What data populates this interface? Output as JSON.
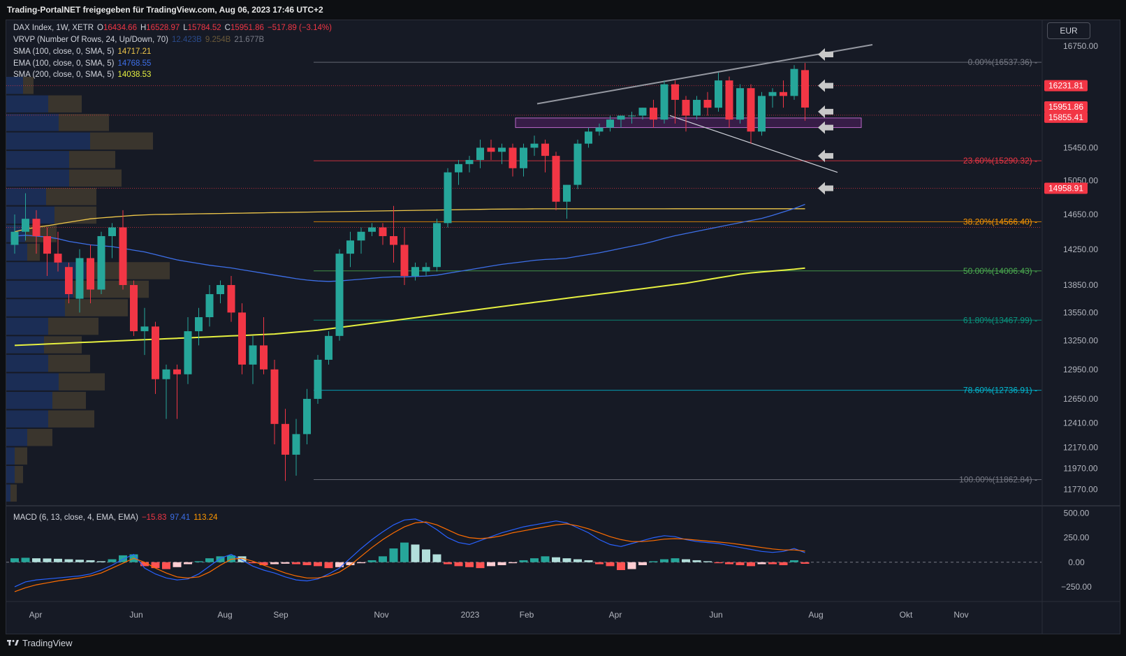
{
  "banner": "Trading-PortalNET freigegeben für TradingView.com, Aug 06, 2023 17:46 UTC+2",
  "footer": "TradingView",
  "currency": "EUR",
  "colors": {
    "up": "#26a69a",
    "down": "#f23645",
    "sma100": "#f0c84a",
    "ema100": "#3d6fe8",
    "sma200": "#e6f040",
    "grid": "#2a2e39",
    "bg": "#161a25"
  },
  "legend": {
    "symbol": "DAX Index, 1W, XETR",
    "o_label": "O",
    "o": "16434.66",
    "h_label": "H",
    "h": "16528.97",
    "l_label": "L",
    "l": "15784.52",
    "c_label": "C",
    "c": "15951.86",
    "change": "−517.89 (−3.14%)",
    "vrvp": "VRVP (Number Of Rows, 24, Up/Down, 70)",
    "vrvp_v1": "12.423B",
    "vrvp_v2": "9.254B",
    "vrvp_v3": "21.677B",
    "sma100": "SMA (100, close, 0, SMA, 5)",
    "sma100_val": "14717.21",
    "ema100": "EMA (100, close, 0, SMA, 5)",
    "ema100_val": "14768.55",
    "sma200": "SMA (200, close, 0, SMA, 5)",
    "sma200_val": "14038.53"
  },
  "macd_legend": {
    "label": "MACD (6, 13, close, 4, EMA, EMA)",
    "hist": "−15.83",
    "macd": "97.41",
    "signal": "113.24"
  },
  "chart_data": [
    {
      "type": "candlestick",
      "title": "DAX Index, 1W, XETR",
      "y_scale": "log",
      "ylim": [
        11650,
        17100
      ],
      "y_ticks": [
        "16750.00",
        "15450.00",
        "15050.00",
        "14650.00",
        "14250.00",
        "13850.00",
        "13550.00",
        "13250.00",
        "12950.00",
        "12650.00",
        "12410.00",
        "12170.00",
        "11970.00",
        "11770.00"
      ],
      "x_ticks": [
        "Apr",
        "Jun",
        "Aug",
        "Sep",
        "Nov",
        "2023",
        "Feb",
        "Apr",
        "Jun",
        "Aug",
        "Okt",
        "Nov"
      ],
      "candles": [
        [
          14300,
          14650,
          14200,
          14450
        ],
        [
          14450,
          14900,
          14350,
          14600
        ],
        [
          14600,
          14700,
          14200,
          14400
        ],
        [
          14400,
          14500,
          13950,
          14200
        ],
        [
          14200,
          14450,
          14000,
          14100
        ],
        [
          14050,
          14100,
          13650,
          13750
        ],
        [
          13700,
          14250,
          13550,
          14150
        ],
        [
          14150,
          14300,
          13650,
          13800
        ],
        [
          13800,
          14450,
          13750,
          14400
        ],
        [
          14400,
          14550,
          14150,
          14500
        ],
        [
          14500,
          14700,
          13800,
          13850
        ],
        [
          13850,
          13900,
          13300,
          13350
        ],
        [
          13350,
          13600,
          13100,
          13400
        ],
        [
          13400,
          13450,
          12700,
          12850
        ],
        [
          12850,
          13000,
          12450,
          12950
        ],
        [
          12950,
          13000,
          12450,
          12900
        ],
        [
          12900,
          13500,
          12800,
          13350
        ],
        [
          13350,
          13600,
          13200,
          13500
        ],
        [
          13500,
          13850,
          13400,
          13750
        ],
        [
          13750,
          13900,
          13650,
          13850
        ],
        [
          13850,
          13950,
          13450,
          13550
        ],
        [
          13550,
          13650,
          12900,
          13000
        ],
        [
          13000,
          13300,
          12800,
          13200
        ],
        [
          13200,
          13500,
          12900,
          12950
        ],
        [
          12950,
          13050,
          12200,
          12400
        ],
        [
          12400,
          12550,
          11850,
          12100
        ],
        [
          12100,
          12450,
          11900,
          12300
        ],
        [
          12300,
          12750,
          12200,
          12650
        ],
        [
          12650,
          13100,
          12600,
          13050
        ],
        [
          13050,
          13350,
          13000,
          13300
        ],
        [
          13300,
          14250,
          13250,
          14200
        ],
        [
          14200,
          14450,
          14050,
          14350
        ],
        [
          14350,
          14500,
          14200,
          14450
        ],
        [
          14450,
          14550,
          14400,
          14500
        ],
        [
          14500,
          14550,
          14300,
          14400
        ],
        [
          14400,
          14750,
          14100,
          14300
        ],
        [
          14300,
          14500,
          13850,
          13950
        ],
        [
          13950,
          14100,
          13900,
          14050
        ],
        [
          14000,
          14100,
          13950,
          14050
        ],
        [
          14050,
          14600,
          14000,
          14550
        ],
        [
          14550,
          15200,
          14500,
          15150
        ],
        [
          15150,
          15300,
          15000,
          15250
        ],
        [
          15250,
          15350,
          15150,
          15300
        ],
        [
          15300,
          15550,
          15200,
          15450
        ],
        [
          15450,
          15550,
          15300,
          15400
        ],
        [
          15400,
          15500,
          15250,
          15450
        ],
        [
          15450,
          15500,
          15100,
          15200
        ],
        [
          15200,
          15500,
          15100,
          15450
        ],
        [
          15450,
          15600,
          15350,
          15500
        ],
        [
          15500,
          15550,
          15150,
          15350
        ],
        [
          15350,
          15400,
          14700,
          14800
        ],
        [
          14800,
          15000,
          14600,
          15000
        ],
        [
          15000,
          15550,
          14950,
          15500
        ],
        [
          15500,
          15700,
          15450,
          15650
        ],
        [
          15650,
          15750,
          15600,
          15700
        ],
        [
          15700,
          15850,
          15650,
          15800
        ],
        [
          15800,
          15850,
          15700,
          15850
        ],
        [
          15850,
          15900,
          15750,
          15850
        ],
        [
          15850,
          15950,
          15800,
          15950
        ],
        [
          15950,
          16050,
          15700,
          15800
        ],
        [
          15800,
          16300,
          15750,
          16250
        ],
        [
          16250,
          16300,
          15750,
          16050
        ],
        [
          16050,
          16100,
          15650,
          15850
        ],
        [
          15850,
          16100,
          15800,
          16050
        ],
        [
          16050,
          16150,
          15850,
          15950
        ],
        [
          15950,
          16400,
          15900,
          16300
        ],
        [
          16300,
          16350,
          15700,
          15800
        ],
        [
          15800,
          16250,
          15750,
          16200
        ],
        [
          16200,
          16250,
          15500,
          15650
        ],
        [
          15650,
          16150,
          15600,
          16100
        ],
        [
          16100,
          16200,
          15950,
          16150
        ],
        [
          16150,
          16300,
          15950,
          16100
        ],
        [
          16100,
          16500,
          16050,
          16450
        ],
        [
          16434.66,
          16528.97,
          15784.52,
          15951.86
        ]
      ],
      "fib_levels": [
        {
          "label": "0.00%(16537.36)",
          "value": 16537.36,
          "color": "#787b86"
        },
        {
          "label": "23.60%(15290.32)",
          "value": 15290.32,
          "color": "#f23645"
        },
        {
          "label": "38.20%(14566.40)",
          "value": 14566.4,
          "color": "#ff9800"
        },
        {
          "label": "50.00%(14006.43)",
          "value": 14006.43,
          "color": "#4caf50"
        },
        {
          "label": "61.80%(13467.99)",
          "value": 13467.99,
          "color": "#089981"
        },
        {
          "label": "78.60%(12736.91)",
          "value": 12736.91,
          "color": "#00bcd4"
        },
        {
          "label": "100.00%(11862.84)",
          "value": 11862.84,
          "color": "#787b86"
        }
      ],
      "price_tags": [
        {
          "label": "16231.81",
          "value": 16231.81
        },
        {
          "label": "15951.86",
          "value": 15951.86
        },
        {
          "label": "15855.41",
          "value": 15855.41
        },
        {
          "label": "14958.91",
          "value": 14958.91
        }
      ],
      "series": [
        {
          "name": "SMA 100",
          "values": [
            14450,
            14480,
            14500,
            14520,
            14540,
            14560,
            14580,
            14600,
            14610,
            14620,
            14630,
            14640,
            14645,
            14650,
            14652,
            14654,
            14656,
            14658,
            14660,
            14662,
            14664,
            14666,
            14668,
            14670,
            14672,
            14674,
            14676,
            14678,
            14680,
            14682,
            14684,
            14686,
            14688,
            14690,
            14692,
            14694,
            14696,
            14698,
            14700,
            14702,
            14704,
            14706,
            14708,
            14710,
            14712,
            14713,
            14714,
            14715,
            14716,
            14716,
            14716,
            14716,
            14716,
            14716,
            14716,
            14716,
            14716,
            14716,
            14716,
            14716,
            14716,
            14717,
            14717,
            14717,
            14717,
            14717,
            14717,
            14717,
            14717,
            14717,
            14717,
            14717,
            14717,
            14717.21
          ]
        },
        {
          "name": "EMA 100",
          "values": [
            14400,
            14410,
            14400,
            14390,
            14370,
            14340,
            14320,
            14300,
            14290,
            14280,
            14260,
            14240,
            14220,
            14190,
            14160,
            14130,
            14110,
            14090,
            14070,
            14055,
            14040,
            14020,
            14000,
            13980,
            13960,
            13940,
            13920,
            13905,
            13895,
            13890,
            13895,
            13905,
            13915,
            13925,
            13935,
            13940,
            13940,
            13945,
            13950,
            13960,
            13980,
            14000,
            14020,
            14040,
            14060,
            14080,
            14095,
            14110,
            14125,
            14135,
            14140,
            14150,
            14170,
            14190,
            14210,
            14235,
            14260,
            14285,
            14310,
            14340,
            14375,
            14405,
            14430,
            14455,
            14480,
            14505,
            14530,
            14555,
            14580,
            14605,
            14640,
            14680,
            14720,
            14768.55
          ]
        },
        {
          "name": "SMA 200",
          "values": [
            13200,
            13205,
            13210,
            13215,
            13220,
            13225,
            13230,
            13235,
            13240,
            13245,
            13250,
            13255,
            13260,
            13265,
            13270,
            13275,
            13280,
            13285,
            13290,
            13295,
            13300,
            13305,
            13310,
            13315,
            13320,
            13330,
            13340,
            13350,
            13360,
            13375,
            13390,
            13405,
            13420,
            13435,
            13450,
            13465,
            13480,
            13495,
            13510,
            13525,
            13540,
            13555,
            13570,
            13585,
            13600,
            13615,
            13630,
            13645,
            13660,
            13675,
            13690,
            13705,
            13720,
            13735,
            13750,
            13765,
            13780,
            13795,
            13810,
            13825,
            13840,
            13855,
            13870,
            13890,
            13910,
            13930,
            13950,
            13970,
            13985,
            13995,
            14005,
            14015,
            14025,
            14038.53
          ]
        }
      ],
      "volume_profile": [
        {
          "up": 0.08,
          "down": 0.05
        },
        {
          "up": 0.2,
          "down": 0.16
        },
        {
          "up": 0.25,
          "down": 0.24
        },
        {
          "up": 0.4,
          "down": 0.3
        },
        {
          "up": 0.3,
          "down": 0.22
        },
        {
          "up": 0.3,
          "down": 0.25
        },
        {
          "up": 0.19,
          "down": 0.24
        },
        {
          "up": 0.23,
          "down": 0.2
        },
        {
          "up": 0.09,
          "down": 0.15
        },
        {
          "up": 0.1,
          "down": 0.06
        },
        {
          "up": 0.38,
          "down": 0.4
        },
        {
          "up": 0.32,
          "down": 0.36
        },
        {
          "up": 0.28,
          "down": 0.3
        },
        {
          "up": 0.2,
          "down": 0.24
        },
        {
          "up": 0.18,
          "down": 0.18
        },
        {
          "up": 0.2,
          "down": 0.2
        },
        {
          "up": 0.25,
          "down": 0.22
        },
        {
          "up": 0.22,
          "down": 0.16
        },
        {
          "up": 0.2,
          "down": 0.22
        },
        {
          "up": 0.1,
          "down": 0.12
        },
        {
          "up": 0.04,
          "down": 0.06
        },
        {
          "up": 0.04,
          "down": 0.04
        },
        {
          "up": 0.02,
          "down": 0.03
        }
      ]
    },
    {
      "type": "bar",
      "title": "MACD (6, 13, close, 4, EMA, EMA)",
      "ylim": [
        -400,
        560
      ],
      "y_ticks": [
        "500.00",
        "250.00",
        "0.00",
        "−250.00"
      ],
      "histogram": [
        40,
        45,
        40,
        38,
        35,
        30,
        25,
        20,
        10,
        30,
        70,
        80,
        -40,
        -60,
        -70,
        -50,
        -20,
        10,
        40,
        60,
        70,
        60,
        -10,
        -30,
        -20,
        -15,
        -20,
        -30,
        -40,
        -60,
        -50,
        -30,
        -10,
        20,
        60,
        140,
        200,
        180,
        130,
        80,
        -20,
        -40,
        -50,
        -60,
        -40,
        -30,
        -10,
        20,
        40,
        60,
        50,
        40,
        30,
        20,
        -20,
        -40,
        -80,
        -70,
        -30,
        10,
        30,
        40,
        30,
        20,
        10,
        -10,
        -20,
        -30,
        -40,
        -20,
        -20,
        -30,
        20,
        -15.83
      ],
      "macd_line": [
        -250,
        -200,
        -180,
        -170,
        -160,
        -150,
        -140,
        -120,
        -80,
        -30,
        30,
        80,
        -60,
        -120,
        -160,
        -180,
        -170,
        -120,
        -40,
        40,
        80,
        20,
        -40,
        -80,
        -110,
        -150,
        -180,
        -190,
        -170,
        -120,
        -60,
        40,
        140,
        230,
        310,
        380,
        430,
        440,
        400,
        330,
        250,
        200,
        180,
        220,
        260,
        300,
        330,
        360,
        380,
        400,
        420,
        400,
        350,
        300,
        230,
        180,
        160,
        190,
        220,
        250,
        270,
        260,
        230,
        210,
        200,
        190,
        170,
        150,
        130,
        110,
        100,
        110,
        140,
        97.41
      ],
      "signal_line": [
        -300,
        -260,
        -230,
        -210,
        -190,
        -175,
        -160,
        -140,
        -110,
        -60,
        -10,
        40,
        0,
        -60,
        -110,
        -150,
        -160,
        -150,
        -100,
        -30,
        30,
        40,
        10,
        -30,
        -70,
        -110,
        -140,
        -160,
        -160,
        -140,
        -100,
        -30,
        60,
        150,
        230,
        300,
        360,
        400,
        410,
        380,
        330,
        280,
        250,
        240,
        250,
        270,
        300,
        320,
        340,
        360,
        380,
        390,
        370,
        340,
        300,
        260,
        230,
        210,
        210,
        220,
        235,
        240,
        235,
        225,
        215,
        205,
        195,
        180,
        165,
        150,
        135,
        125,
        125,
        113.24
      ]
    }
  ]
}
